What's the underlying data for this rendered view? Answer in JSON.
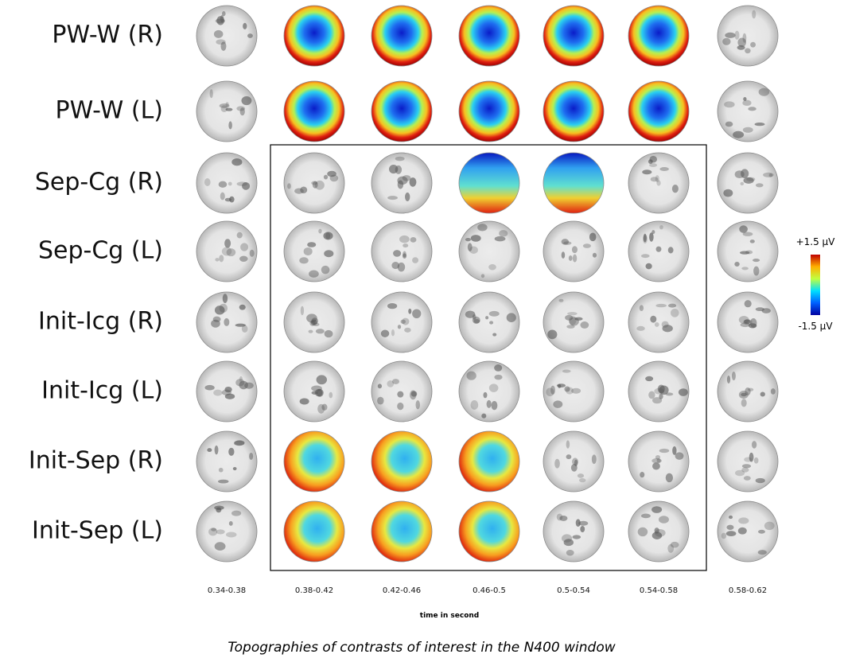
{
  "figure": {
    "rows": [
      "PW-W (R)",
      "PW-W (L)",
      "Sep-Cg (R)",
      "Sep-Cg (L)",
      "Init-Icg (R)",
      "Init-Icg (L)",
      "Init-Sep (R)",
      "Init-Sep (L)"
    ],
    "columns": [
      "0.34-0.38",
      "0.38-0.42",
      "0.42-0.46",
      "0.46-0.5",
      "0.5-0.54",
      "0.54-0.58",
      "0.58-0.62"
    ],
    "x_axis_label": "time in second",
    "colorbar": {
      "max_label": "+1.5 µV",
      "min_label": "-1.5 µV"
    },
    "caption": "Topographies of contrasts of interest in the N400 window"
  }
}
